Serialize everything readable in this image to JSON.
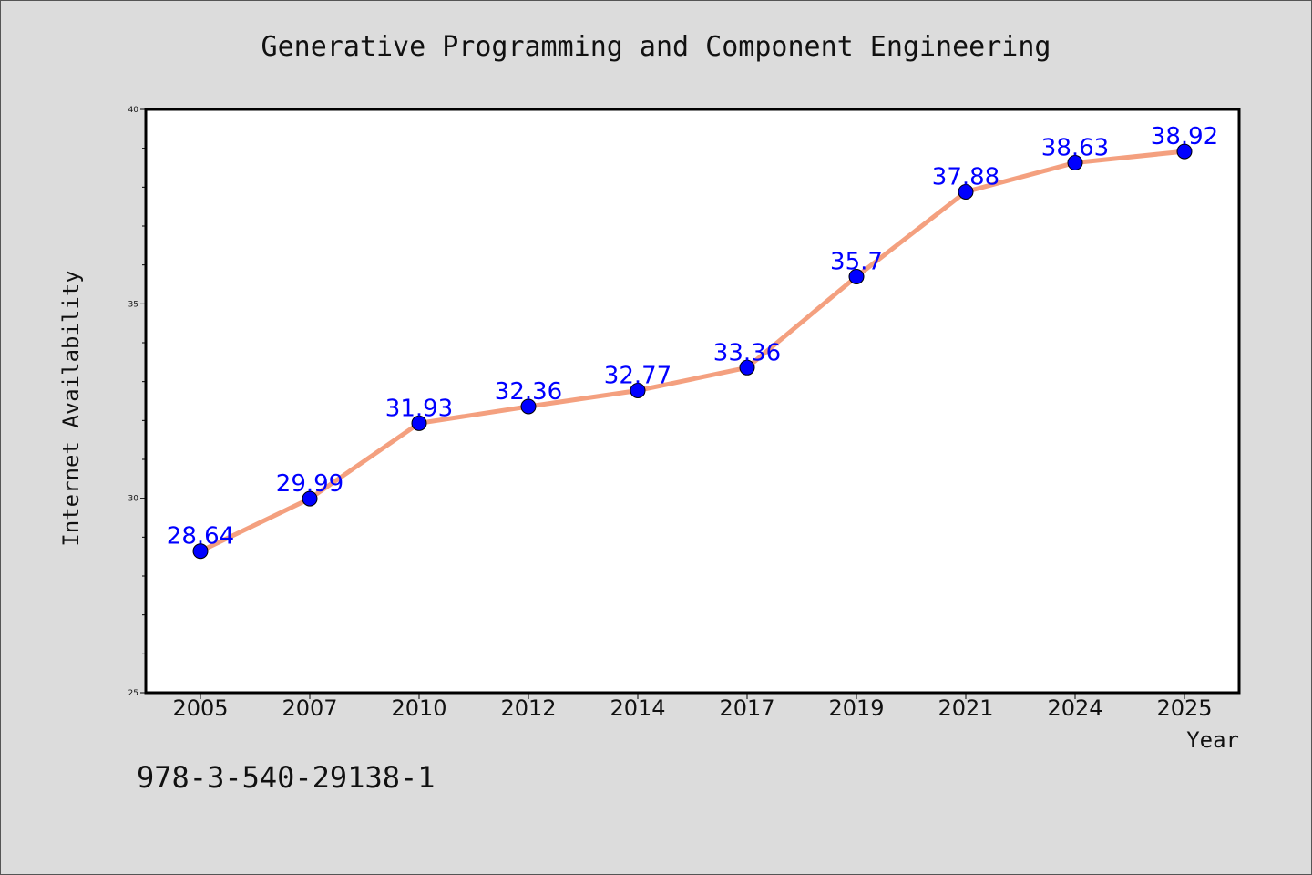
{
  "chart_data": {
    "type": "line",
    "title": "Generative Programming and Component Engineering",
    "xlabel": "Year",
    "ylabel": "Internet Availability",
    "categories": [
      "2005",
      "2007",
      "2010",
      "2012",
      "2014",
      "2017",
      "2019",
      "2021",
      "2024",
      "2025"
    ],
    "values": [
      28.64,
      29.99,
      31.93,
      32.36,
      32.77,
      33.36,
      35.7,
      37.88,
      38.63,
      38.92
    ],
    "data_labels": [
      "28.64",
      "29.99",
      "31.93",
      "32.36",
      "32.77",
      "33.36",
      "35.7",
      "37.88",
      "38.63",
      "38.92"
    ],
    "ylim": [
      25,
      40
    ],
    "yticks": [
      "25",
      "30",
      "35",
      "40"
    ],
    "grid": false,
    "line_color": "#f4a07f",
    "marker_color": "#0000ff",
    "label_color": "#0000ff",
    "background_color": "#dcdcdc",
    "plot_background": "#ffffff"
  },
  "footer": {
    "isbn": "978-3-540-29138-1"
  }
}
